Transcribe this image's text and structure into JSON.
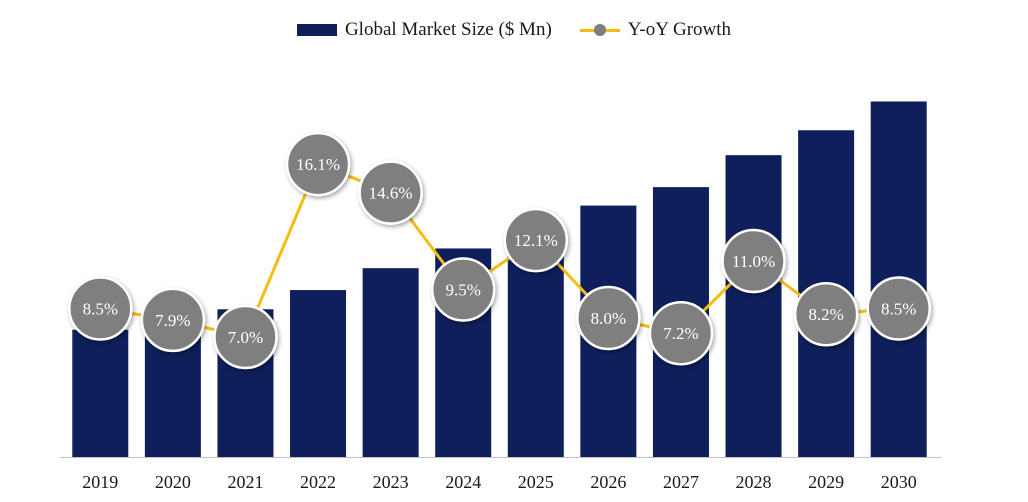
{
  "chart_data": {
    "type": "bar",
    "title": "",
    "xlabel": "",
    "ylabel": "",
    "categories": [
      "2019",
      "2020",
      "2021",
      "2022",
      "2023",
      "2024",
      "2025",
      "2026",
      "2027",
      "2028",
      "2029",
      "2030"
    ],
    "series": [
      {
        "name": "Global Market Size ($ Mn)",
        "type": "bar",
        "values": [
          100,
          108.5,
          116.1,
          131.2,
          148.4,
          163.9,
          182.6,
          197.6,
          212.1,
          237.2,
          256.8,
          279.4
        ]
      },
      {
        "name": "Y-oY Growth",
        "type": "line",
        "values": [
          8.5,
          7.9,
          7.0,
          16.1,
          14.6,
          9.5,
          12.1,
          8.0,
          7.2,
          11.0,
          8.2,
          8.5
        ],
        "labels": [
          "8.5%",
          "7.9%",
          "7.0%",
          "16.1%",
          "14.6%",
          "9.5%",
          "12.1%",
          "8.0%",
          "7.2%",
          "11.0%",
          "8.2%",
          "8.5%"
        ]
      }
    ],
    "ylim": [
      0,
      290
    ],
    "growth_ylim": [
      0,
      20
    ],
    "grid": false,
    "legend": "top-center",
    "colors": {
      "bar": "#0e1f5b",
      "line": "#f5bd12",
      "marker": "#7f7f7f",
      "marker_border": "#ffffff"
    }
  }
}
